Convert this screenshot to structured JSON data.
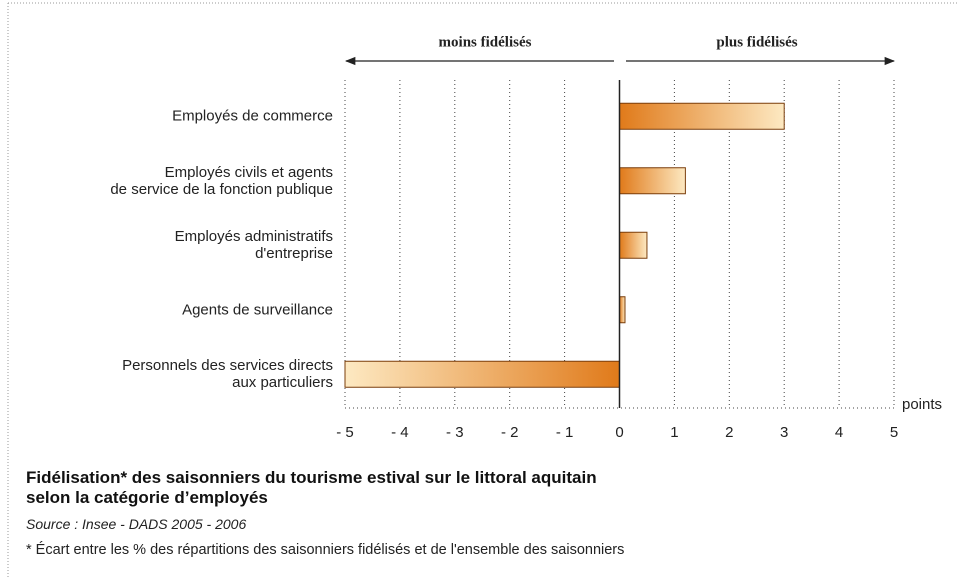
{
  "chart_data": {
    "type": "bar",
    "orientation": "horizontal",
    "title": "Fidélisation* des saisonniers du tourisme estival sur le littoral aquitain\nselon la catégorie d’employés",
    "source": "Source : Insee - DADS 2005 - 2006",
    "footnote": "* Écart entre les % des répartitions des saisonniers fidélisés et de l'ensemble des saisonniers",
    "annotations": [
      "moins fidélisés",
      "plus fidélisés"
    ],
    "x_label": "points",
    "categories": [
      "Employés de commerce",
      "Employés civils et agents\nde service de la fonction publique",
      "Employés administratifs\nd'entreprise",
      "Agents de surveillance",
      "Personnels des services directs\naux particuliers"
    ],
    "values": [
      3.0,
      1.2,
      0.5,
      0.1,
      -5.0
    ],
    "color": "#e07a1a",
    "xlim": [
      -5,
      5
    ],
    "xticks": [
      {
        "value": -5,
        "label": "- 5"
      },
      {
        "value": -4,
        "label": "- 4"
      },
      {
        "value": -3,
        "label": "- 3"
      },
      {
        "value": -2,
        "label": "- 2"
      },
      {
        "value": -1,
        "label": "- 1"
      },
      0,
      1,
      2,
      3,
      4,
      5
    ],
    "grid": true
  }
}
